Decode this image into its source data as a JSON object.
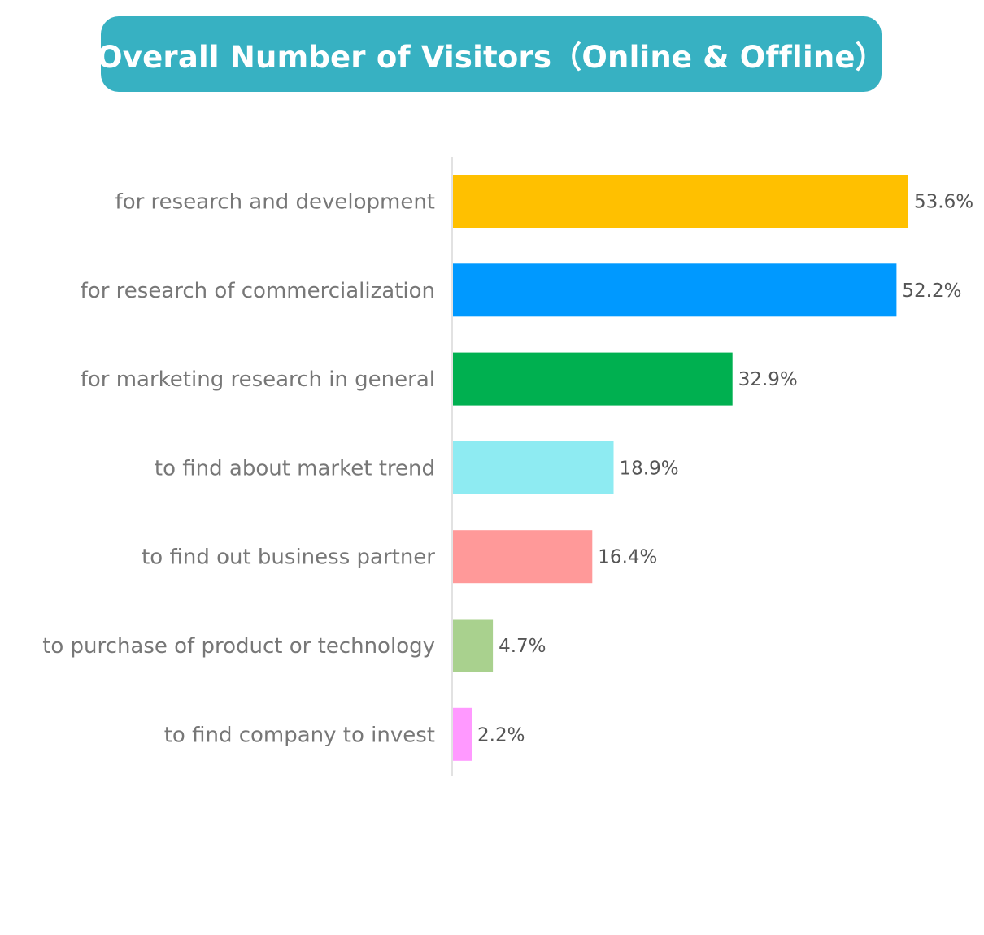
{
  "title": "Overall Number of Visitors（Online & Offline）",
  "chart_data": {
    "type": "bar",
    "orientation": "horizontal",
    "categories": [
      "for research and development",
      "for research of commercialization",
      "for marketing research in general",
      "to find about market trend",
      "to find out business partner",
      "to purchase of product or technology",
      "to find company to invest"
    ],
    "values": [
      53.6,
      52.2,
      32.9,
      18.9,
      16.4,
      4.7,
      2.2
    ],
    "value_labels": [
      "53.6%",
      "52.2%",
      "32.9%",
      "18.9%",
      "16.4%",
      "4.7%",
      "2.2%"
    ],
    "colors": [
      "#ffc000",
      "#0099ff",
      "#00b050",
      "#8eebf2",
      "#ff9999",
      "#a9d18e",
      "#ff99ff"
    ],
    "unit": "%",
    "xlim": [
      0,
      53.6
    ],
    "grid": false,
    "legend": "none"
  }
}
